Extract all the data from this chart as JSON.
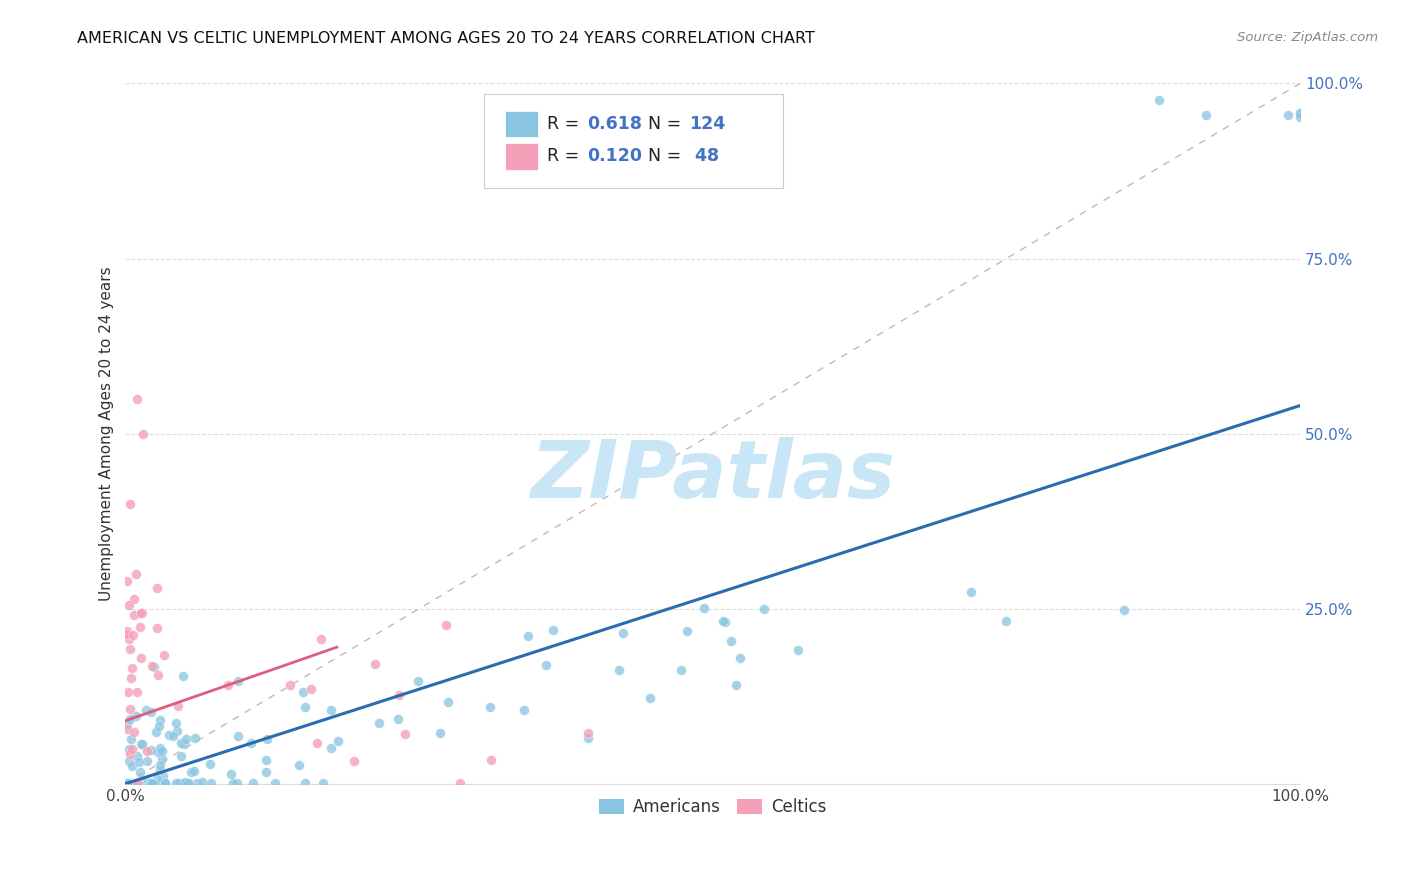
{
  "title": "AMERICAN VS CELTIC UNEMPLOYMENT AMONG AGES 20 TO 24 YEARS CORRELATION CHART",
  "source": "Source: ZipAtlas.com",
  "ylabel": "Unemployment Among Ages 20 to 24 years",
  "xlim": [
    0.0,
    1.0
  ],
  "ylim": [
    0.0,
    1.0
  ],
  "american_R": 0.618,
  "american_N": 124,
  "celtic_R": 0.12,
  "celtic_N": 48,
  "american_color": "#89c4e1",
  "celtic_color": "#f4a0b8",
  "american_line_color": "#2b6cb0",
  "celtic_line_color": "#e05c80",
  "diagonal_color": "#ccaaaa",
  "grid_color": "#dddddd",
  "watermark_color": "#c8e6f5",
  "background_color": "#ffffff",
  "ytick_color": "#4472c4",
  "xtick_color": "#444444",
  "am_line_x": [
    0.0,
    1.0
  ],
  "am_line_y": [
    0.0,
    0.54
  ],
  "ce_line_x": [
    0.0,
    0.18
  ],
  "ce_line_y": [
    0.09,
    0.195
  ]
}
